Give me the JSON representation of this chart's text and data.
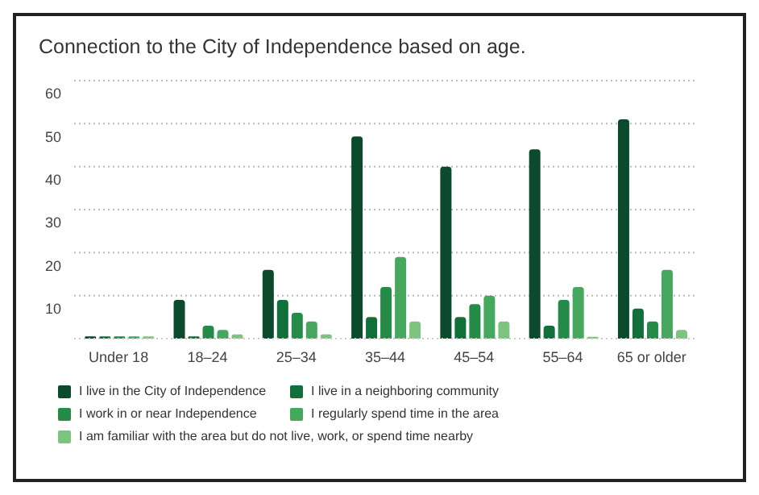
{
  "chart_data": {
    "type": "bar",
    "title": "Connection to the City of Independence based on age.",
    "categories": [
      "Under 18",
      "18–24",
      "25–34",
      "35–44",
      "45–54",
      "55–64",
      "65 or older"
    ],
    "series": [
      {
        "name": "I live in the City of Independence",
        "color": "#0b4a2c",
        "values": [
          0.5,
          9,
          16,
          47,
          40,
          44,
          51
        ]
      },
      {
        "name": "I live in a neighboring community",
        "color": "#11703a",
        "values": [
          0.5,
          0.5,
          9,
          5,
          5,
          3,
          7
        ]
      },
      {
        "name": "I work in or near Independence",
        "color": "#268a48",
        "values": [
          0.5,
          3,
          6,
          12,
          8,
          9,
          4
        ]
      },
      {
        "name": "I regularly spend time in the area",
        "color": "#46a85e",
        "values": [
          0.5,
          2,
          4,
          19,
          10,
          12,
          16
        ]
      },
      {
        "name": "I am familiar with the area but do not live, work, or spend time nearby",
        "color": "#7cc47f",
        "values": [
          0.5,
          1,
          1,
          4,
          4,
          0.4,
          2
        ]
      }
    ],
    "ylim": [
      0,
      60
    ],
    "yticks": [
      {
        "value": 0,
        "label": null
      },
      10,
      20,
      30,
      40,
      50,
      60
    ],
    "grid": "y",
    "legend": "bottom"
  }
}
